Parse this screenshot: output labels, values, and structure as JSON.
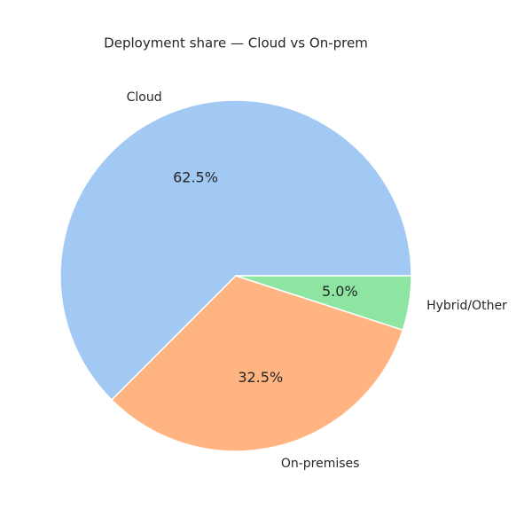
{
  "chart_data": {
    "type": "pie",
    "title": "Deployment share — Cloud vs On-prem",
    "categories": [
      "Cloud",
      "On-premises",
      "Hybrid/Other"
    ],
    "values": [
      62.5,
      32.5,
      5.0
    ],
    "value_labels": [
      "62.5%",
      "32.5%",
      "5.0%"
    ],
    "colors": [
      "#a1c9f4",
      "#ffb482",
      "#8de5a1"
    ]
  }
}
